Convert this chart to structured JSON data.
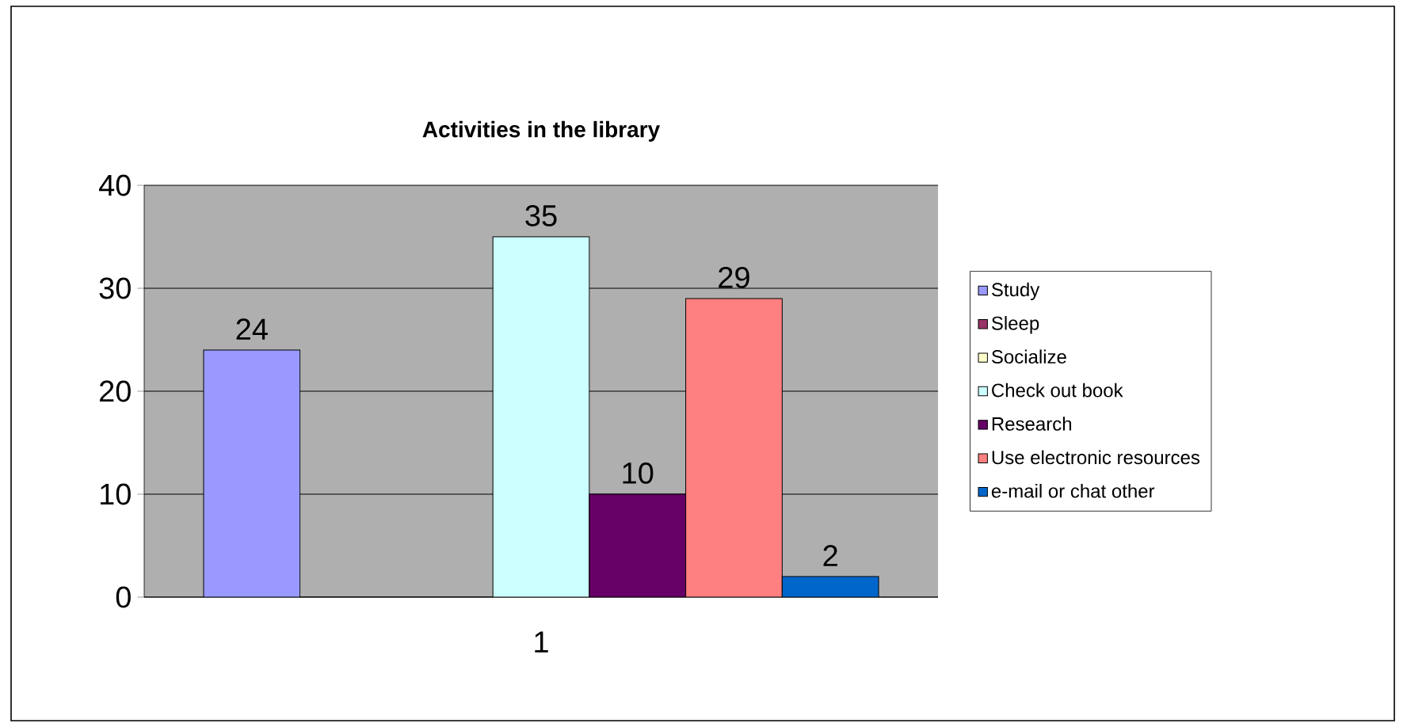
{
  "chart_data": {
    "type": "bar",
    "title": "Activities in the library",
    "categories": [
      "1"
    ],
    "series": [
      {
        "name": "Study",
        "color": "#9999ff",
        "values": [
          24
        ],
        "value_labels": [
          "24"
        ]
      },
      {
        "name": "Sleep",
        "color": "#993366",
        "values": [
          0
        ],
        "value_labels": [
          null
        ]
      },
      {
        "name": "Socialize",
        "color": "#ffffcc",
        "values": [
          0
        ],
        "value_labels": [
          null
        ]
      },
      {
        "name": "Check out book",
        "color": "#ccffff",
        "values": [
          35
        ],
        "value_labels": [
          "35"
        ]
      },
      {
        "name": "Research",
        "color": "#660066",
        "values": [
          10
        ],
        "value_labels": [
          "10"
        ]
      },
      {
        "name": "Use electronic resources",
        "color": "#ff8080",
        "values": [
          29
        ],
        "value_labels": [
          "29"
        ]
      },
      {
        "name": "e-mail or chat other",
        "color": "#0066cc",
        "values": [
          2
        ],
        "value_labels": [
          "2"
        ]
      }
    ],
    "ylim": [
      0,
      40
    ],
    "yticks": [
      0,
      10,
      20,
      30,
      40
    ],
    "grid": "y",
    "legend": "right"
  }
}
